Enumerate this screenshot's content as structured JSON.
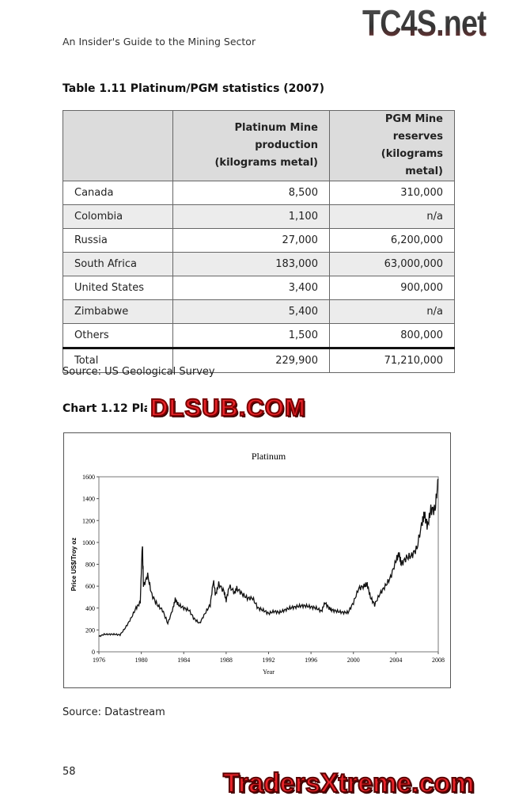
{
  "running_head": "An Insider's Guide to the Mining Sector",
  "watermarks": {
    "top": "TC4S.net",
    "middle": "DLSUB.COM",
    "bottom": "TradersXtreme.com"
  },
  "table": {
    "title": "Table 1.11 Platinum/PGM statistics (2007)",
    "headers": [
      "",
      "Platinum Mine production (kilograms metal)",
      "PGM Mine reserves (kilograms metal)"
    ],
    "header_lines": [
      [
        "Platinum Mine production",
        "(kilograms metal)"
      ],
      [
        "PGM Mine reserves",
        "(kilograms metal)"
      ]
    ],
    "rows": [
      [
        "Canada",
        "8,500",
        "310,000"
      ],
      [
        "Colombia",
        "1,100",
        "n/a"
      ],
      [
        "Russia",
        "27,000",
        "6,200,000"
      ],
      [
        "South Africa",
        "183,000",
        "63,000,000"
      ],
      [
        "United States",
        "3,400",
        "900,000"
      ],
      [
        "Zimbabwe",
        "5,400",
        "n/a"
      ],
      [
        "Others",
        "1,500",
        "800,000"
      ]
    ],
    "total": [
      "Total",
      "229,900",
      "71,210,000"
    ],
    "source": "Source: US Geological Survey"
  },
  "chart_title_label": "Chart 1.12 Plati",
  "chart_data": {
    "type": "line",
    "title": "Platinum",
    "xlabel": "Year",
    "ylabel": "Price US$/Troy oz",
    "xlim": [
      1976,
      2008
    ],
    "ylim": [
      0,
      1600
    ],
    "xticks": [
      1976,
      1980,
      1984,
      1988,
      1992,
      1996,
      2000,
      2004,
      2008
    ],
    "yticks": [
      0,
      200,
      400,
      600,
      800,
      1000,
      1200,
      1400,
      1600
    ],
    "grid": false,
    "series": [
      {
        "x": [
          1976,
          1976.5,
          1977,
          1977.5,
          1978,
          1978.5,
          1979,
          1979.5,
          1979.9,
          1980.1,
          1980.2,
          1980.6,
          1981,
          1981.5,
          1982,
          1982.5,
          1983,
          1983.2,
          1983.5,
          1984,
          1984.5,
          1985,
          1985.5,
          1986,
          1986.5,
          1986.8,
          1987,
          1987.3,
          1987.8,
          1988,
          1988.3,
          1988.8,
          1989,
          1989.5,
          1990,
          1990.5,
          1991,
          1991.5,
          1992,
          1992.5,
          1993,
          1993.5,
          1994,
          1994.5,
          1995,
          1995.5,
          1996,
          1996.5,
          1997,
          1997.3,
          1997.7,
          1998,
          1998.5,
          1999,
          1999.5,
          2000,
          2000.5,
          2001,
          2001.3,
          2001.6,
          2002,
          2002.5,
          2003,
          2003.5,
          2004,
          2004.3,
          2004.5,
          2005,
          2005.5,
          2006,
          2006.5,
          2006.7,
          2007,
          2007.3,
          2007.7,
          2008
        ],
        "y": [
          140,
          160,
          160,
          160,
          155,
          220,
          300,
          400,
          450,
          1000,
          600,
          700,
          520,
          430,
          380,
          260,
          400,
          480,
          430,
          400,
          380,
          300,
          260,
          350,
          430,
          650,
          520,
          620,
          550,
          470,
          600,
          540,
          580,
          530,
          490,
          490,
          400,
          380,
          350,
          370,
          360,
          380,
          400,
          410,
          420,
          420,
          410,
          400,
          370,
          450,
          400,
          380,
          370,
          360,
          360,
          450,
          580,
          600,
          620,
          500,
          430,
          530,
          600,
          680,
          830,
          900,
          800,
          860,
          880,
          950,
          1200,
          1250,
          1150,
          1300,
          1300,
          1580
        ]
      }
    ]
  },
  "chart_source": "Source: Datastream",
  "page_number": "58"
}
